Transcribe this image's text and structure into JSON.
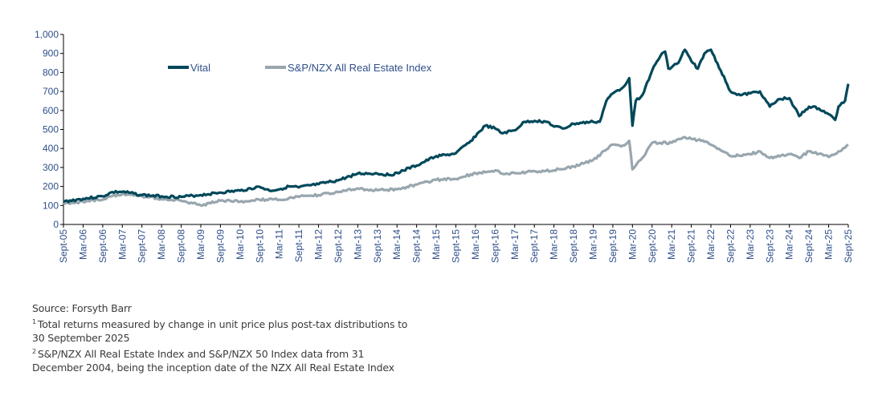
{
  "chart_data": {
    "type": "line",
    "title": "",
    "xlabel": "",
    "ylabel": "",
    "ylim": [
      0,
      1000
    ],
    "yticks": [
      "0",
      "100",
      "200",
      "300",
      "400",
      "500",
      "600",
      "700",
      "800",
      "900",
      "1,000"
    ],
    "xticks": [
      "Sept-05",
      "Mar-06",
      "Sept-06",
      "Mar-07",
      "Sept-07",
      "Mar-08",
      "Sept-08",
      "Mar-09",
      "Sept-09",
      "Mar-10",
      "Sept-10",
      "Mar-11",
      "Sept-11",
      "Mar-12",
      "Sept-12",
      "Mar-13",
      "Sept-13",
      "Mar-14",
      "Sept-14",
      "Mar-15",
      "Sept-15",
      "Mar-16",
      "Sept-16",
      "Mar-17",
      "Sept-17",
      "Mar-18",
      "Sept-18",
      "Mar-19",
      "Sept-19",
      "Mar-20",
      "Sept-20",
      "Mar-21",
      "Sept-21",
      "Mar-22",
      "Sept-22",
      "Mar-23",
      "Sept-23",
      "Mar-24",
      "Sept-24",
      "Mar-25",
      "Sept-25"
    ],
    "xlim": [
      "2005-09",
      "2025-09"
    ],
    "grid": false,
    "legend": "top-left",
    "series": [
      {
        "name": "Vital",
        "color": "#00485a",
        "points": [
          [
            "2005-09",
            120
          ],
          [
            "2006-03",
            135
          ],
          [
            "2006-09",
            148
          ],
          [
            "2006-12",
            170
          ],
          [
            "2007-03",
            172
          ],
          [
            "2007-09",
            155
          ],
          [
            "2008-03",
            148
          ],
          [
            "2008-09",
            145
          ],
          [
            "2009-03",
            155
          ],
          [
            "2009-09",
            168
          ],
          [
            "2010-03",
            178
          ],
          [
            "2010-09",
            198
          ],
          [
            "2010-12",
            178
          ],
          [
            "2011-03",
            185
          ],
          [
            "2011-06",
            200
          ],
          [
            "2011-09",
            195
          ],
          [
            "2012-03",
            212
          ],
          [
            "2012-09",
            232
          ],
          [
            "2013-03",
            268
          ],
          [
            "2013-09",
            268
          ],
          [
            "2014-01",
            260
          ],
          [
            "2014-03",
            272
          ],
          [
            "2014-09",
            310
          ],
          [
            "2015-03",
            360
          ],
          [
            "2015-06",
            365
          ],
          [
            "2015-09",
            375
          ],
          [
            "2016-01",
            430
          ],
          [
            "2016-06",
            520
          ],
          [
            "2016-09",
            505
          ],
          [
            "2016-11",
            480
          ],
          [
            "2017-03",
            495
          ],
          [
            "2017-06",
            540
          ],
          [
            "2017-09",
            545
          ],
          [
            "2018-01",
            540
          ],
          [
            "2018-03",
            515
          ],
          [
            "2018-06",
            505
          ],
          [
            "2018-09",
            530
          ],
          [
            "2019-03",
            540
          ],
          [
            "2019-05",
            540
          ],
          [
            "2019-07",
            650
          ],
          [
            "2019-09",
            690
          ],
          [
            "2019-12",
            720
          ],
          [
            "2020-02",
            770
          ],
          [
            "2020-03",
            520
          ],
          [
            "2020-04",
            650
          ],
          [
            "2020-06",
            680
          ],
          [
            "2020-09",
            810
          ],
          [
            "2020-12",
            900
          ],
          [
            "2021-01",
            910
          ],
          [
            "2021-02",
            820
          ],
          [
            "2021-05",
            850
          ],
          [
            "2021-07",
            920
          ],
          [
            "2021-09",
            860
          ],
          [
            "2021-11",
            820
          ],
          [
            "2022-01",
            900
          ],
          [
            "2022-03",
            920
          ],
          [
            "2022-06",
            810
          ],
          [
            "2022-09",
            700
          ],
          [
            "2022-12",
            680
          ],
          [
            "2023-03",
            690
          ],
          [
            "2023-06",
            700
          ],
          [
            "2023-09",
            620
          ],
          [
            "2023-12",
            660
          ],
          [
            "2024-03",
            665
          ],
          [
            "2024-06",
            570
          ],
          [
            "2024-09",
            620
          ],
          [
            "2024-12",
            610
          ],
          [
            "2025-03",
            580
          ],
          [
            "2025-05",
            550
          ],
          [
            "2025-06",
            620
          ],
          [
            "2025-08",
            650
          ],
          [
            "2025-09",
            740
          ]
        ]
      },
      {
        "name": "S&P/NZX All Real Estate Index",
        "color": "#98a6ae",
        "points": [
          [
            "2005-09",
            110
          ],
          [
            "2006-03",
            120
          ],
          [
            "2006-09",
            130
          ],
          [
            "2006-12",
            150
          ],
          [
            "2007-03",
            160
          ],
          [
            "2007-09",
            150
          ],
          [
            "2008-03",
            135
          ],
          [
            "2008-09",
            125
          ],
          [
            "2009-03",
            100
          ],
          [
            "2009-09",
            125
          ],
          [
            "2010-03",
            120
          ],
          [
            "2010-09",
            130
          ],
          [
            "2011-03",
            130
          ],
          [
            "2011-09",
            145
          ],
          [
            "2012-03",
            155
          ],
          [
            "2012-09",
            170
          ],
          [
            "2013-03",
            190
          ],
          [
            "2013-09",
            180
          ],
          [
            "2014-03",
            185
          ],
          [
            "2014-09",
            210
          ],
          [
            "2015-03",
            235
          ],
          [
            "2015-09",
            240
          ],
          [
            "2016-03",
            270
          ],
          [
            "2016-09",
            285
          ],
          [
            "2016-12",
            265
          ],
          [
            "2017-03",
            270
          ],
          [
            "2017-09",
            280
          ],
          [
            "2018-03",
            285
          ],
          [
            "2018-09",
            305
          ],
          [
            "2019-03",
            340
          ],
          [
            "2019-09",
            420
          ],
          [
            "2019-12",
            415
          ],
          [
            "2020-02",
            440
          ],
          [
            "2020-03",
            290
          ],
          [
            "2020-06",
            350
          ],
          [
            "2020-09",
            430
          ],
          [
            "2021-03",
            430
          ],
          [
            "2021-07",
            460
          ],
          [
            "2021-09",
            450
          ],
          [
            "2021-12",
            440
          ],
          [
            "2022-03",
            420
          ],
          [
            "2022-06",
            390
          ],
          [
            "2022-09",
            360
          ],
          [
            "2023-03",
            370
          ],
          [
            "2023-06",
            385
          ],
          [
            "2023-09",
            350
          ],
          [
            "2024-03",
            370
          ],
          [
            "2024-06",
            350
          ],
          [
            "2024-09",
            385
          ],
          [
            "2025-01",
            370
          ],
          [
            "2025-03",
            355
          ],
          [
            "2025-06",
            385
          ],
          [
            "2025-09",
            420
          ]
        ]
      }
    ]
  },
  "footnotes": {
    "source": "Source: Forsyth Barr",
    "note1_mark": "1",
    "note1": "Total returns measured by change in unit price plus post-tax distributions to",
    "note1_cont": "30 September 2025",
    "note2_mark": "2",
    "note2": "S&P/NZX All Real Estate Index and S&P/NZX 50 Index data from 31",
    "note2_cont": "December 2004, being the inception date of the NZX All Real Estate Index"
  }
}
